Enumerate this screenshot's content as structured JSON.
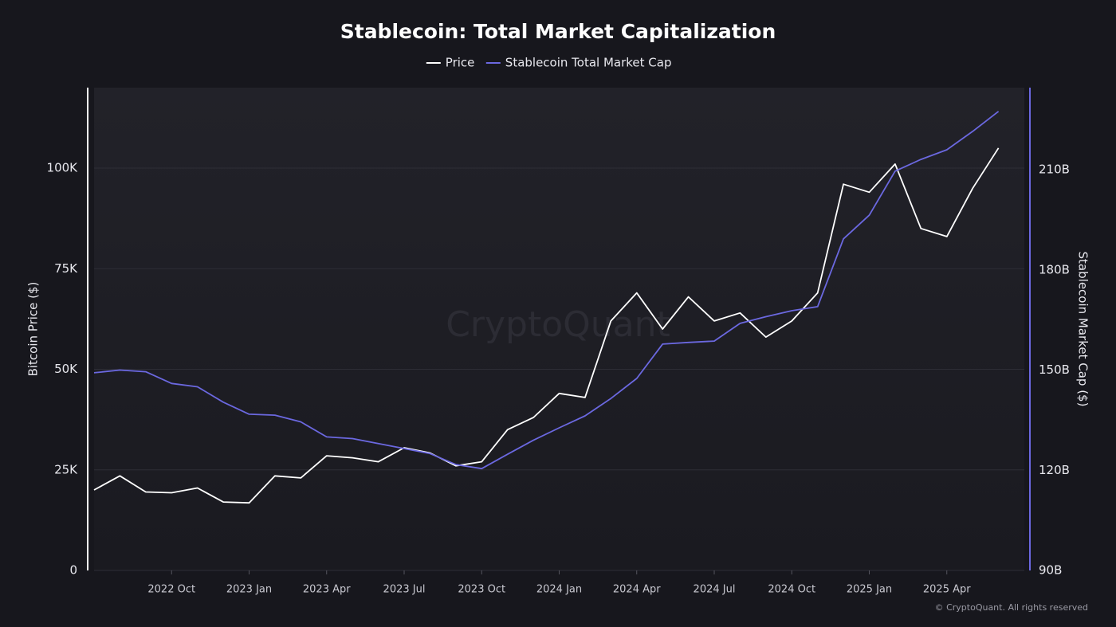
{
  "chart_data": {
    "type": "line",
    "title": "Stablecoin: Total Market Capitalization",
    "watermark": "CryptoQuant",
    "footer": "© CryptoQuant. All rights reserved",
    "x_label": null,
    "y_label": "Bitcoin Price ($)",
    "y2_label": "Stablecoin Market Cap ($)",
    "x": [
      "2022-07",
      "2022-08",
      "2022-09",
      "2022-10",
      "2022-11",
      "2022-12",
      "2023-01",
      "2023-02",
      "2023-03",
      "2023-04",
      "2023-05",
      "2023-06",
      "2023-07",
      "2023-08",
      "2023-09",
      "2023-10",
      "2023-11",
      "2023-12",
      "2024-01",
      "2024-02",
      "2024-03",
      "2024-04",
      "2024-05",
      "2024-06",
      "2024-07",
      "2024-08",
      "2024-09",
      "2024-10",
      "2024-11",
      "2024-12",
      "2025-01",
      "2025-02",
      "2025-03",
      "2025-04",
      "2025-05",
      "2025-06"
    ],
    "xlim": [
      "2022-07",
      "2025-07"
    ],
    "xticks": [
      {
        "value": "2022-10",
        "label": "2022 Oct"
      },
      {
        "value": "2023-01",
        "label": "2023 Jan"
      },
      {
        "value": "2023-04",
        "label": "2023 Apr"
      },
      {
        "value": "2023-07",
        "label": "2023 Jul"
      },
      {
        "value": "2023-10",
        "label": "2023 Oct"
      },
      {
        "value": "2024-01",
        "label": "2024 Jan"
      },
      {
        "value": "2024-04",
        "label": "2024 Apr"
      },
      {
        "value": "2024-07",
        "label": "2024 Jul"
      },
      {
        "value": "2024-10",
        "label": "2024 Oct"
      },
      {
        "value": "2025-01",
        "label": "2025 Jan"
      },
      {
        "value": "2025-04",
        "label": "2025 Apr"
      }
    ],
    "ylim": [
      0,
      120000
    ],
    "yticks": [
      0,
      {
        "value": 25000,
        "label": "25K"
      },
      {
        "value": 50000,
        "label": "50K"
      },
      {
        "value": 75000,
        "label": "75K"
      },
      {
        "value": 100000,
        "label": "100K"
      }
    ],
    "y2lim": [
      90000000000,
      234600000000
    ],
    "y2ticks": [
      {
        "value": 90000000000,
        "label": "90B"
      },
      {
        "value": 120000000000,
        "label": "120B"
      },
      {
        "value": 150000000000,
        "label": "150B"
      },
      {
        "value": 180000000000,
        "label": "180B"
      },
      {
        "value": 210000000000,
        "label": "210B"
      }
    ],
    "grid": true,
    "legend": "top",
    "series": [
      {
        "name": "Price",
        "color": "#ffffff",
        "values": [
          20000,
          23500,
          19500,
          19300,
          20500,
          17000,
          16800,
          23500,
          23000,
          28500,
          28000,
          27000,
          30500,
          29200,
          26000,
          27000,
          35000,
          38000,
          44000,
          43000,
          62000,
          69000,
          60000,
          68000,
          62000,
          64000,
          58000,
          62000,
          69000,
          96000,
          94000,
          101000,
          85000,
          83000,
          95000,
          105000
        ]
      },
      {
        "name": "Stablecoin Total Market Cap",
        "color": "#6b68e0",
        "axis": "y2",
        "values": [
          149200000000,
          150000000000,
          149500000000,
          146000000000,
          145000000000,
          140400000000,
          136800000000,
          136500000000,
          134500000000,
          130000000000,
          129500000000,
          128000000000,
          126500000000,
          125000000000,
          121700000000,
          120500000000,
          124800000000,
          129000000000,
          132700000000,
          136300000000,
          141500000000,
          147500000000,
          157800000000,
          158300000000,
          158700000000,
          164000000000,
          166000000000,
          167800000000,
          169000000000,
          189300000000,
          196400000000,
          209600000000,
          213100000000,
          216000000000,
          221500000000,
          227500000000
        ]
      }
    ]
  }
}
